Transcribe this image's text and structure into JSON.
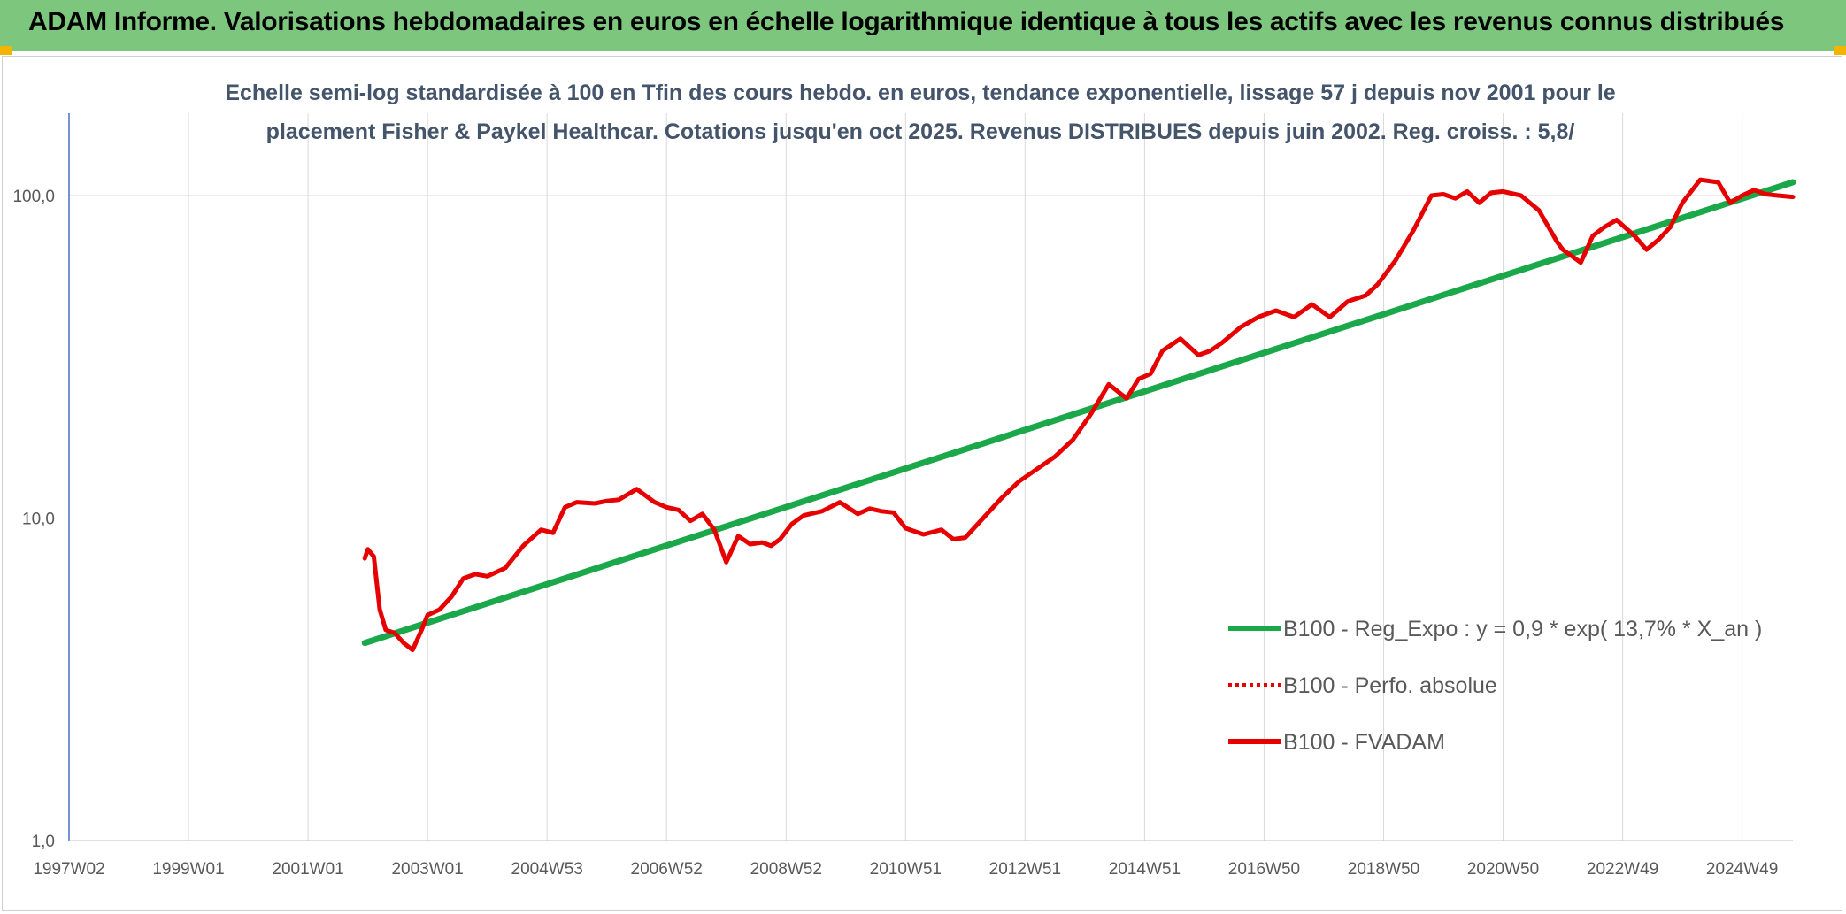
{
  "header": {
    "title": "ADAM Informe. Valorisations hebdomadaires en euros en échelle logarithmique identique à tous les actifs avec les revenus connus distribués"
  },
  "colors": {
    "banner": "#7dc67d",
    "trend": "#1aa84a",
    "price": "#e60000",
    "grid": "#d9d9d9",
    "text": "#595959",
    "title": "#44546a"
  },
  "chart_data": {
    "type": "line",
    "title_lines": [
      "Echelle semi-log standardisée à 100 en Tfin des cours hebdo. en euros, tendance exponentielle, lissage 57 j depuis nov 2001 pour le",
      "placement Fisher & Paykel Healthcar. Cotations jusqu'en oct 2025. Revenus DISTRIBUES depuis juin 2002. Reg. croiss. : 5,8/"
    ],
    "y_scale": "log",
    "ylim": [
      1,
      180
    ],
    "y_ticks": [
      {
        "value": 1,
        "label": "1,0"
      },
      {
        "value": 10,
        "label": "10,0"
      },
      {
        "value": 100,
        "label": "100,0"
      }
    ],
    "xlim": [
      1997.0,
      2025.85
    ],
    "x_ticks": [
      {
        "value": 1997.0,
        "label": "1997W02"
      },
      {
        "value": 1999.0,
        "label": "1999W01"
      },
      {
        "value": 2001.0,
        "label": "2001W01"
      },
      {
        "value": 2003.0,
        "label": "2003W01"
      },
      {
        "value": 2005.0,
        "label": "2004W53"
      },
      {
        "value": 2007.0,
        "label": "2006W52"
      },
      {
        "value": 2009.0,
        "label": "2008W52"
      },
      {
        "value": 2011.0,
        "label": "2010W51"
      },
      {
        "value": 2013.0,
        "label": "2012W51"
      },
      {
        "value": 2015.0,
        "label": "2014W51"
      },
      {
        "value": 2017.0,
        "label": "2016W50"
      },
      {
        "value": 2019.0,
        "label": "2018W50"
      },
      {
        "value": 2021.0,
        "label": "2020W50"
      },
      {
        "value": 2023.0,
        "label": "2022W49"
      },
      {
        "value": 2025.0,
        "label": "2024W49"
      }
    ],
    "legend_position": "right",
    "legend": [
      {
        "name": "B100 - Reg_Expo : y = 0,9 * exp( 13,7% *  X_an )",
        "style": "solid",
        "color": "#1aa84a"
      },
      {
        "name": "B100 - Perfo. absolue",
        "style": "dotted",
        "color": "#e60000"
      },
      {
        "name": "B100 - FVADAM",
        "style": "solid",
        "color": "#e60000"
      }
    ],
    "series": [
      {
        "name": "B100 - Reg_Expo",
        "color": "#1aa84a",
        "x": [
          2001.95,
          2025.85
        ],
        "y": [
          4.1,
          110
        ]
      },
      {
        "name": "B100 - FVADAM",
        "color": "#e60000",
        "x": [
          2001.95,
          2002.0,
          2002.1,
          2002.2,
          2002.3,
          2002.45,
          2002.6,
          2002.75,
          2002.9,
          2003.0,
          2003.2,
          2003.4,
          2003.6,
          2003.8,
          2004.0,
          2004.3,
          2004.6,
          2004.9,
          2005.1,
          2005.3,
          2005.5,
          2005.8,
          2006.0,
          2006.2,
          2006.5,
          2006.8,
          2007.0,
          2007.2,
          2007.4,
          2007.6,
          2007.8,
          2008.0,
          2008.2,
          2008.4,
          2008.6,
          2008.75,
          2008.9,
          2009.1,
          2009.3,
          2009.6,
          2009.9,
          2010.2,
          2010.4,
          2010.6,
          2010.8,
          2011.0,
          2011.3,
          2011.6,
          2011.8,
          2012.0,
          2012.3,
          2012.6,
          2012.9,
          2013.2,
          2013.5,
          2013.8,
          2014.1,
          2014.4,
          2014.7,
          2014.9,
          2015.1,
          2015.3,
          2015.6,
          2015.9,
          2016.1,
          2016.3,
          2016.6,
          2016.9,
          2017.2,
          2017.5,
          2017.8,
          2018.1,
          2018.4,
          2018.7,
          2018.9,
          2019.2,
          2019.5,
          2019.8,
          2020.0,
          2020.2,
          2020.4,
          2020.6,
          2020.8,
          2021.0,
          2021.3,
          2021.6,
          2021.9,
          2022.0,
          2022.3,
          2022.5,
          2022.7,
          2022.9,
          2023.2,
          2023.4,
          2023.6,
          2023.8,
          2024.0,
          2024.3,
          2024.6,
          2024.8,
          2025.0,
          2025.2,
          2025.4,
          2025.6,
          2025.85
        ],
        "y": [
          7.5,
          8.0,
          7.6,
          5.2,
          4.5,
          4.4,
          4.1,
          3.9,
          4.5,
          5.0,
          5.2,
          5.7,
          6.5,
          6.7,
          6.6,
          7.0,
          8.2,
          9.2,
          9.0,
          10.8,
          11.2,
          11.1,
          11.3,
          11.4,
          12.3,
          11.2,
          10.8,
          10.6,
          9.8,
          10.3,
          9.2,
          7.3,
          8.8,
          8.3,
          8.4,
          8.2,
          8.6,
          9.6,
          10.2,
          10.5,
          11.2,
          10.3,
          10.7,
          10.5,
          10.4,
          9.3,
          8.9,
          9.2,
          8.6,
          8.7,
          10.0,
          11.5,
          13.0,
          14.2,
          15.5,
          17.5,
          21.0,
          26.0,
          23.5,
          27.0,
          28.0,
          33.0,
          36.0,
          32.0,
          33.0,
          35.0,
          39.0,
          42.0,
          44.0,
          42.0,
          46.0,
          42.0,
          47.0,
          49.0,
          53.0,
          63.0,
          78.0,
          100.0,
          101.0,
          98.0,
          103.0,
          95.0,
          102.0,
          103.0,
          100.0,
          90.0,
          72.0,
          68.0,
          62.0,
          75.0,
          80.0,
          84.0,
          75.0,
          68.0,
          73.0,
          80.0,
          95.0,
          112.0,
          110.0,
          95.0,
          100.0,
          104.0,
          101.0,
          100.0,
          99.0
        ]
      }
    ]
  }
}
